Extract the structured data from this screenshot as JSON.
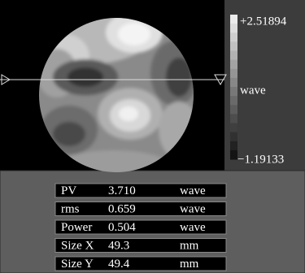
{
  "scale": {
    "max": "+2.51894",
    "unit": "wave",
    "min": "−1.19133"
  },
  "table": {
    "rows": [
      [
        "PV",
        "3.710",
        "wave"
      ],
      [
        "rms",
        "0.659",
        "wave"
      ],
      [
        "Power",
        "0.504",
        "wave"
      ],
      [
        "Size X",
        "49.3",
        "mm"
      ],
      [
        "Size Y",
        "49.4",
        "mm"
      ]
    ]
  }
}
